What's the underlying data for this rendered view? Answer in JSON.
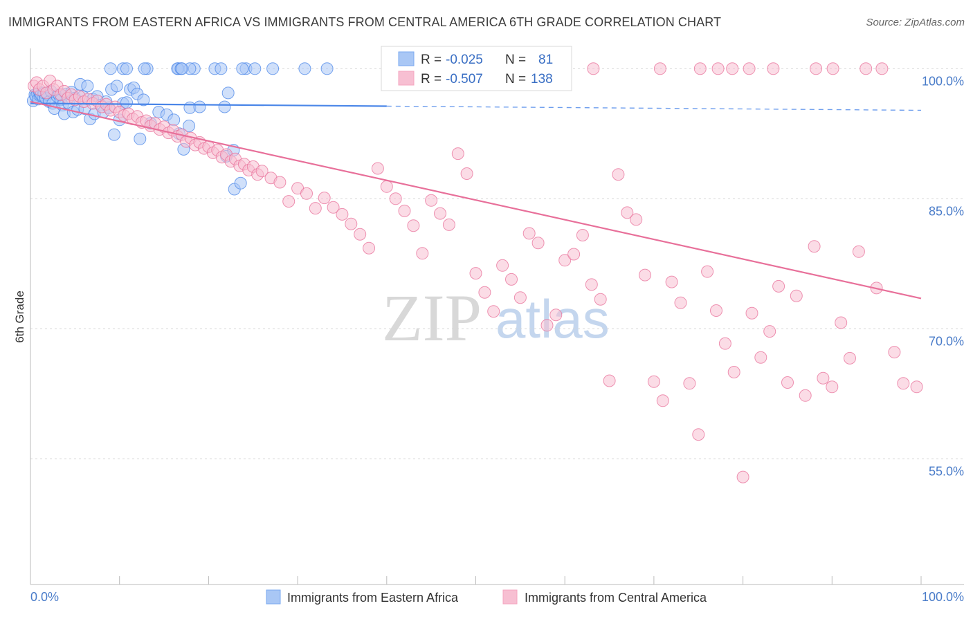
{
  "title": "IMMIGRANTS FROM EASTERN AFRICA VS IMMIGRANTS FROM CENTRAL AMERICA 6TH GRADE CORRELATION CHART",
  "source": "Source: ZipAtlas.com",
  "watermark": {
    "zip": "ZIP",
    "atlas": "atlas"
  },
  "stats_box": {
    "rows": [
      {
        "r_label": "R =",
        "r_value": "-0.025",
        "n_label": "N =",
        "n_value": "81",
        "color": "#7aaaf0"
      },
      {
        "r_label": "R =",
        "r_value": "-0.507",
        "n_label": "N =",
        "n_value": "138",
        "color": "#f4a6c0"
      }
    ]
  },
  "legend": [
    {
      "label": "Immigrants from Eastern Africa",
      "color": "#7aaaf0"
    },
    {
      "label": "Immigrants from Central America",
      "color": "#f4a6c0"
    }
  ],
  "chart_data": {
    "type": "scatter",
    "title": "IMMIGRANTS FROM EASTERN AFRICA VS IMMIGRANTS FROM CENTRAL AMERICA 6TH GRADE CORRELATION CHART",
    "xlabel": "",
    "ylabel": "6th Grade",
    "xlim": [
      0,
      100
    ],
    "ylim": [
      40.5,
      102.5
    ],
    "x_tick_labels": [
      "0.0%",
      "100.0%"
    ],
    "y_ticks": [
      55,
      70,
      85,
      100
    ],
    "y_tick_labels": [
      "55.0%",
      "70.0%",
      "85.0%",
      "100.0%"
    ],
    "grid": true,
    "legend_position": "bottom",
    "series": [
      {
        "name": "Immigrants from Eastern Africa",
        "color": "#4a86e8",
        "fill": "#a9c7f5",
        "trend": {
          "x0": 0,
          "y0": 96.0,
          "x1": 100,
          "y1": 95.2,
          "solid_until": 40
        },
        "points": [
          [
            0.3,
            96.3
          ],
          [
            0.5,
            97.0
          ],
          [
            0.6,
            96.8
          ],
          [
            0.8,
            97.1
          ],
          [
            0.9,
            96.5
          ],
          [
            1.0,
            97.3
          ],
          [
            1.1,
            96.9
          ],
          [
            1.2,
            97.0
          ],
          [
            1.4,
            96.8
          ],
          [
            1.5,
            97.2
          ],
          [
            1.7,
            96.6
          ],
          [
            1.9,
            97.0
          ],
          [
            2.1,
            96.2
          ],
          [
            2.3,
            97.4
          ],
          [
            2.5,
            96.0
          ],
          [
            2.7,
            95.4
          ],
          [
            3.0,
            96.8
          ],
          [
            3.2,
            97.0
          ],
          [
            3.4,
            96.4
          ],
          [
            3.6,
            95.8
          ],
          [
            3.8,
            94.8
          ],
          [
            4.0,
            97.1
          ],
          [
            4.3,
            96.0
          ],
          [
            4.6,
            97.3
          ],
          [
            4.8,
            95.0
          ],
          [
            5.0,
            96.6
          ],
          [
            5.3,
            95.3
          ],
          [
            5.6,
            98.2
          ],
          [
            5.9,
            96.8
          ],
          [
            6.1,
            95.4
          ],
          [
            6.4,
            98.0
          ],
          [
            6.7,
            94.2
          ],
          [
            7.0,
            96.5
          ],
          [
            7.2,
            94.8
          ],
          [
            7.5,
            96.8
          ],
          [
            7.9,
            95.8
          ],
          [
            8.2,
            95.0
          ],
          [
            8.5,
            96.2
          ],
          [
            8.8,
            95.5
          ],
          [
            9.1,
            97.6
          ],
          [
            9.4,
            92.4
          ],
          [
            9.7,
            98.0
          ],
          [
            10.0,
            94.1
          ],
          [
            10.4,
            96.0
          ],
          [
            10.8,
            96.1
          ],
          [
            11.2,
            97.6
          ],
          [
            11.6,
            97.8
          ],
          [
            12.0,
            97.1
          ],
          [
            12.3,
            91.9
          ],
          [
            12.7,
            96.4
          ],
          [
            13.5,
            93.7
          ],
          [
            14.4,
            95.0
          ],
          [
            15.3,
            94.7
          ],
          [
            16.1,
            94.1
          ],
          [
            16.7,
            92.5
          ],
          [
            17.2,
            90.7
          ],
          [
            17.9,
            95.5
          ],
          [
            19.0,
            95.6
          ],
          [
            17.8,
            93.4
          ],
          [
            18.4,
            100.0
          ],
          [
            17.9,
            100.0
          ],
          [
            9.0,
            100.0
          ],
          [
            10.4,
            100.0
          ],
          [
            10.8,
            100.0
          ],
          [
            13.1,
            100.0
          ],
          [
            12.8,
            100.0
          ],
          [
            16.6,
            100.0
          ],
          [
            16.5,
            100.0
          ],
          [
            16.9,
            100.0
          ],
          [
            20.7,
            100.0
          ],
          [
            21.4,
            100.0
          ],
          [
            17.0,
            100.0
          ],
          [
            24.2,
            100.0
          ],
          [
            23.8,
            100.0
          ],
          [
            25.2,
            100.0
          ],
          [
            27.2,
            100.0
          ],
          [
            30.8,
            100.0
          ],
          [
            33.3,
            100.0
          ],
          [
            22.9,
            86.1
          ],
          [
            23.6,
            86.8
          ],
          [
            22.2,
            97.2
          ],
          [
            22.0,
            89.9
          ],
          [
            22.8,
            90.6
          ],
          [
            21.8,
            95.6
          ]
        ]
      },
      {
        "name": "Immigrants from Central America",
        "color": "#e8709a",
        "fill": "#f7bfd2",
        "trend": {
          "x0": 0,
          "y0": 96.2,
          "x1": 100,
          "y1": 73.5
        },
        "points": [
          [
            0.4,
            98.0
          ],
          [
            0.7,
            98.4
          ],
          [
            1.0,
            97.6
          ],
          [
            1.4,
            98.0
          ],
          [
            1.8,
            97.2
          ],
          [
            2.2,
            98.6
          ],
          [
            2.6,
            97.6
          ],
          [
            3.0,
            98.0
          ],
          [
            3.4,
            97.0
          ],
          [
            3.8,
            97.4
          ],
          [
            4.2,
            96.6
          ],
          [
            4.6,
            97.0
          ],
          [
            5.0,
            96.4
          ],
          [
            5.5,
            96.8
          ],
          [
            6.0,
            96.2
          ],
          [
            6.5,
            96.5
          ],
          [
            7.0,
            96.0
          ],
          [
            7.5,
            96.3
          ],
          [
            8.0,
            95.6
          ],
          [
            8.5,
            95.9
          ],
          [
            9.0,
            95.2
          ],
          [
            9.5,
            95.6
          ],
          [
            10.0,
            95.0
          ],
          [
            10.5,
            94.6
          ],
          [
            11.0,
            94.8
          ],
          [
            11.5,
            94.2
          ],
          [
            12.0,
            94.5
          ],
          [
            12.5,
            93.8
          ],
          [
            13.0,
            94.0
          ],
          [
            13.5,
            93.4
          ],
          [
            14.0,
            93.7
          ],
          [
            14.5,
            93.0
          ],
          [
            15.0,
            93.3
          ],
          [
            15.5,
            92.6
          ],
          [
            16.0,
            92.9
          ],
          [
            16.5,
            92.2
          ],
          [
            17.0,
            92.4
          ],
          [
            17.5,
            91.6
          ],
          [
            18.0,
            92.0
          ],
          [
            18.5,
            91.2
          ],
          [
            19.0,
            91.5
          ],
          [
            19.5,
            90.8
          ],
          [
            20.0,
            91.0
          ],
          [
            20.5,
            90.3
          ],
          [
            21.0,
            90.6
          ],
          [
            21.5,
            89.8
          ],
          [
            22.0,
            90.1
          ],
          [
            22.5,
            89.3
          ],
          [
            23.0,
            89.6
          ],
          [
            23.5,
            88.8
          ],
          [
            24.0,
            89.0
          ],
          [
            24.5,
            88.3
          ],
          [
            25.0,
            88.7
          ],
          [
            25.5,
            87.8
          ],
          [
            26.0,
            88.2
          ],
          [
            27.0,
            87.4
          ],
          [
            28.0,
            86.9
          ],
          [
            29.0,
            84.7
          ],
          [
            30.0,
            86.2
          ],
          [
            31.0,
            85.6
          ],
          [
            32.0,
            83.9
          ],
          [
            33.0,
            85.1
          ],
          [
            34.0,
            84.0
          ],
          [
            35.0,
            83.2
          ],
          [
            36.0,
            82.1
          ],
          [
            37.0,
            80.9
          ],
          [
            38.0,
            79.3
          ],
          [
            39.0,
            88.5
          ],
          [
            40.0,
            86.4
          ],
          [
            41.0,
            85.0
          ],
          [
            42.0,
            83.6
          ],
          [
            43.0,
            81.9
          ],
          [
            44.0,
            78.7
          ],
          [
            45.0,
            84.8
          ],
          [
            46.0,
            83.3
          ],
          [
            47.0,
            82.0
          ],
          [
            48.0,
            90.2
          ],
          [
            49.0,
            87.9
          ],
          [
            50.0,
            76.4
          ],
          [
            51.0,
            74.2
          ],
          [
            52.0,
            72.0
          ],
          [
            53.0,
            77.3
          ],
          [
            54.0,
            75.7
          ],
          [
            55.0,
            73.6
          ],
          [
            56.0,
            81.0
          ],
          [
            57.0,
            79.9
          ],
          [
            58.0,
            70.4
          ],
          [
            59.0,
            71.6
          ],
          [
            60.0,
            77.9
          ],
          [
            61.0,
            78.6
          ],
          [
            62.0,
            80.8
          ],
          [
            63.0,
            75.1
          ],
          [
            64.0,
            73.4
          ],
          [
            65.0,
            64.0
          ],
          [
            66.0,
            87.8
          ],
          [
            67.0,
            83.4
          ],
          [
            68.0,
            82.6
          ],
          [
            69.0,
            76.2
          ],
          [
            70.0,
            63.9
          ],
          [
            71.0,
            61.7
          ],
          [
            72.0,
            75.4
          ],
          [
            73.0,
            73.0
          ],
          [
            74.0,
            63.7
          ],
          [
            75.0,
            57.8
          ],
          [
            76.0,
            76.6
          ],
          [
            77.0,
            72.1
          ],
          [
            78.0,
            68.3
          ],
          [
            79.0,
            65.0
          ],
          [
            80.0,
            52.9
          ],
          [
            81.0,
            71.8
          ],
          [
            82.0,
            66.7
          ],
          [
            83.0,
            69.7
          ],
          [
            84.0,
            74.9
          ],
          [
            85.0,
            63.8
          ],
          [
            86.0,
            73.8
          ],
          [
            87.0,
            62.3
          ],
          [
            88.0,
            79.5
          ],
          [
            89.0,
            64.3
          ],
          [
            90.0,
            63.3
          ],
          [
            91.0,
            70.7
          ],
          [
            92.0,
            66.6
          ],
          [
            93.0,
            78.9
          ],
          [
            95.0,
            74.7
          ],
          [
            97.0,
            67.3
          ],
          [
            98.0,
            63.7
          ],
          [
            99.5,
            63.3
          ],
          [
            63.2,
            100.0
          ],
          [
            70.7,
            100.0
          ],
          [
            75.2,
            100.0
          ],
          [
            77.2,
            100.0
          ],
          [
            78.8,
            100.0
          ],
          [
            80.7,
            100.0
          ],
          [
            83.4,
            100.0
          ],
          [
            88.2,
            100.0
          ],
          [
            90.1,
            100.0
          ],
          [
            93.8,
            100.0
          ],
          [
            95.6,
            100.0
          ]
        ]
      }
    ]
  }
}
